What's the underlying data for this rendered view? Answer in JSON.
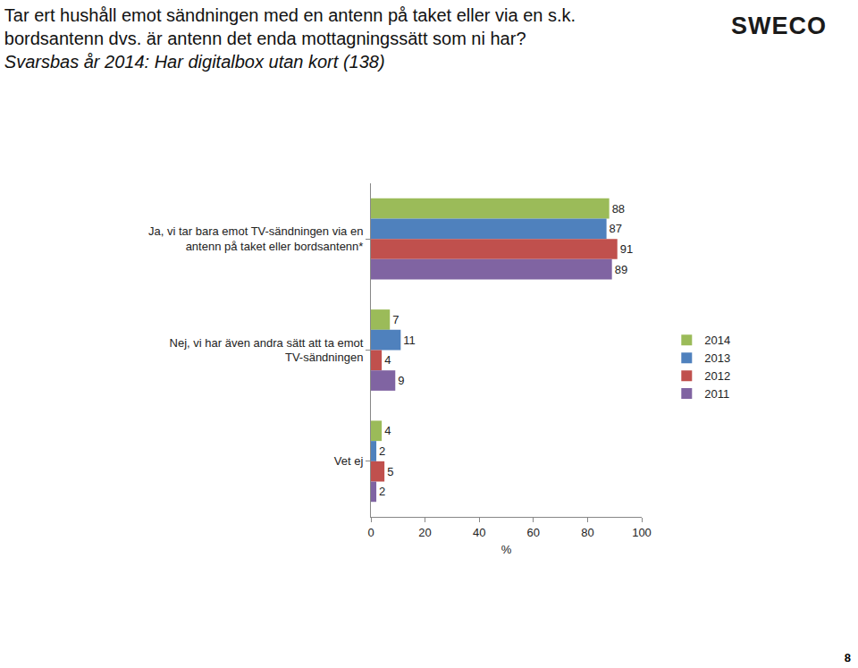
{
  "chart_data": {
    "type": "bar",
    "orientation": "horizontal",
    "title": "Tar ert hushåll emot sändningen med en antenn på taket eller via en s.k. bordsantenn dvs. är antenn det enda mottagningssätt som ni har?",
    "subtitle": "Svarsbas år 2014: Har digitalbox utan kort (138)",
    "logo": "SWECO",
    "page_number": "8",
    "categories": [
      "Ja, vi tar bara emot TV-sändningen via en antenn på taket eller bordsantenn*",
      "Nej, vi har även andra sätt att ta emot TV-sändningen",
      "Vet ej"
    ],
    "series": [
      {
        "name": "2014",
        "color": "#9bbb59",
        "values": [
          88,
          7,
          4
        ]
      },
      {
        "name": "2013",
        "color": "#4f81bd",
        "values": [
          87,
          11,
          2
        ]
      },
      {
        "name": "2012",
        "color": "#c0504d",
        "values": [
          91,
          4,
          5
        ]
      },
      {
        "name": "2011",
        "color": "#8064a2",
        "values": [
          89,
          9,
          2
        ]
      }
    ],
    "xlabel": "%",
    "xlim": [
      0,
      100
    ],
    "xticks": [
      0,
      20,
      40,
      60,
      80,
      100
    ],
    "grid": false,
    "legend": "right",
    "data_labels": true
  }
}
